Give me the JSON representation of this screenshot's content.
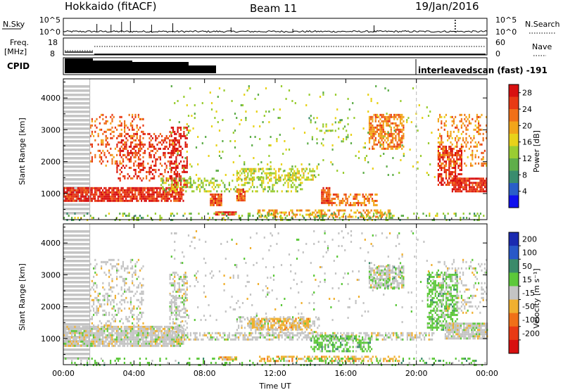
{
  "header": {
    "station": "Hokkaido (fitACF)",
    "beam": "Beam 11",
    "date": "19/Jan/2016"
  },
  "top_panels": {
    "nsky_label": "N.Sky",
    "nsky_ticks": [
      "10^5",
      "10^0"
    ],
    "nsearch_label": "N.Search",
    "nsearch_ticks": [
      "10^5",
      "10^0"
    ],
    "freq_label_1": "Freq.",
    "freq_label_2": "[MHz]",
    "freq_ticks": [
      "18",
      "8"
    ],
    "nave_label": "Nave",
    "nave_ticks": [
      "60",
      "0"
    ],
    "cpid_label": "CPID",
    "cpid_text": "interleavedscan (fast)  -191",
    "nsky_spikes": [
      {
        "t": 1.9,
        "v": 0.6
      },
      {
        "t": 2.7,
        "v": 0.55
      },
      {
        "t": 3.3,
        "v": 0.75
      },
      {
        "t": 3.8,
        "v": 0.8
      },
      {
        "t": 5.0,
        "v": 0.55
      },
      {
        "t": 6.2,
        "v": 0.65
      },
      {
        "t": 9.5,
        "v": 0.35
      },
      {
        "t": 13.0,
        "v": 0.25
      },
      {
        "t": 17.6,
        "v": 0.5
      },
      {
        "t": 22.2,
        "v": 1.0
      }
    ]
  },
  "chart_data": [
    {
      "type": "heatmap",
      "panel": "power",
      "xlabel": "",
      "ylabel": "Slant Range [km]",
      "x_ticks": [
        "00:00",
        "04:00",
        "08:00",
        "12:00",
        "16:00",
        "20:00",
        "00:00"
      ],
      "xlim_hours": [
        0,
        24
      ],
      "y_ticks": [
        1000,
        2000,
        3000,
        4000
      ],
      "ylim_km": [
        180,
        4600
      ],
      "colorbar_label": "Power [dB]",
      "colorbar_ticks": [
        28,
        24,
        20,
        16,
        12,
        8,
        4
      ],
      "colorbar_range": [
        0,
        30
      ],
      "colorbar_colors": [
        "#1010ee",
        "#2a5ec8",
        "#3a8c6e",
        "#5fae4a",
        "#9acd32",
        "#e8d21a",
        "#f2a51a",
        "#f07018",
        "#e83a14",
        "#d81010"
      ],
      "gate_lines_hours": [
        1.5,
        20.0
      ],
      "regions": [
        {
          "t0": 0.0,
          "t1": 1.5,
          "r0": 400,
          "r1": 4400,
          "pattern": "stripes",
          "color": "#c4c4c4"
        },
        {
          "t0": 0.0,
          "t1": 6.8,
          "r0": 780,
          "r1": 1200,
          "v": 27
        },
        {
          "t0": 1.5,
          "t1": 4.5,
          "r0": 1900,
          "r1": 3500,
          "v": 23,
          "density": 0.25
        },
        {
          "t0": 3.0,
          "t1": 6.5,
          "r0": 1400,
          "r1": 2900,
          "v": 26,
          "density": 0.3
        },
        {
          "t0": 6.0,
          "t1": 7.0,
          "r0": 1200,
          "r1": 3100,
          "v": 28,
          "density": 0.4
        },
        {
          "t0": 5.5,
          "t1": 13.5,
          "r0": 1100,
          "r1": 1500,
          "v": 14,
          "density": 0.35
        },
        {
          "t0": 9.8,
          "t1": 14.2,
          "r0": 1450,
          "r1": 1800,
          "v": 15,
          "density": 0.5
        },
        {
          "t0": 8.3,
          "t1": 9.0,
          "r0": 650,
          "r1": 1000,
          "v": 24
        },
        {
          "t0": 9.8,
          "t1": 10.3,
          "r0": 800,
          "r1": 1150,
          "v": 24
        },
        {
          "t0": 14.6,
          "t1": 15.1,
          "r0": 700,
          "r1": 1200,
          "v": 25
        },
        {
          "t0": 15.0,
          "t1": 17.8,
          "r0": 650,
          "r1": 1000,
          "v": 22,
          "density": 0.55
        },
        {
          "t0": 8.6,
          "t1": 9.8,
          "r0": 360,
          "r1": 440,
          "v": 26
        },
        {
          "t0": 11.0,
          "t1": 18.5,
          "r0": 300,
          "r1": 500,
          "v": 20,
          "density": 0.45
        },
        {
          "t0": 17.3,
          "t1": 19.3,
          "r0": 2400,
          "r1": 3500,
          "v": 22,
          "density": 0.6
        },
        {
          "t0": 13.8,
          "t1": 16.2,
          "r0": 2600,
          "r1": 3400,
          "v": 12,
          "density": 0.15
        },
        {
          "t0": 21.2,
          "t1": 22.6,
          "r0": 1300,
          "r1": 2500,
          "v": 27,
          "density": 0.6
        },
        {
          "t0": 22.0,
          "t1": 24.0,
          "r0": 1050,
          "r1": 1500,
          "v": 27
        },
        {
          "t0": 21.2,
          "t1": 24.0,
          "r0": 1900,
          "r1": 3500,
          "v": 21,
          "density": 0.25
        },
        {
          "t0": 0.0,
          "t1": 24.0,
          "r0": 180,
          "r1": 400,
          "v": 12,
          "density": 0.2
        },
        {
          "t0": 6.0,
          "t1": 21.0,
          "r0": 1500,
          "r1": 4400,
          "v": 14,
          "density": 0.03
        }
      ]
    },
    {
      "type": "heatmap",
      "panel": "velocity",
      "xlabel": "Time UT",
      "ylabel": "Slant Range [km]",
      "x_ticks": [
        "00:00",
        "04:00",
        "08:00",
        "12:00",
        "16:00",
        "20:00",
        "00:00"
      ],
      "xlim_hours": [
        0,
        24
      ],
      "y_ticks": [
        1000,
        2000,
        3000,
        4000
      ],
      "ylim_km": [
        180,
        4600
      ],
      "colorbar_label": "Velocity [m s⁻¹]",
      "colorbar_ticks": [
        200,
        100,
        50,
        15,
        -15,
        -50,
        -100,
        -200
      ],
      "colorbar_colors": [
        "#1a2ab0",
        "#2858c8",
        "#3a8a6a",
        "#5cc83a",
        "#c4c4c4",
        "#f0b030",
        "#f07018",
        "#e83a14",
        "#d81010"
      ],
      "gate_lines_hours": [
        1.5,
        20.0
      ],
      "regions": [
        {
          "t0": 0.0,
          "t1": 1.5,
          "r0": 400,
          "r1": 4400,
          "pattern": "stripes",
          "color": "#c4c4c4"
        },
        {
          "t0": 0.0,
          "t1": 6.8,
          "r0": 780,
          "r1": 1400,
          "cls": 4
        },
        {
          "t0": 1.5,
          "t1": 4.5,
          "r0": 1400,
          "r1": 3500,
          "cls": 4,
          "density": 0.25
        },
        {
          "t0": 6.0,
          "t1": 7.0,
          "r0": 1200,
          "r1": 3100,
          "cls": 4,
          "density": 0.45
        },
        {
          "t0": 5.5,
          "t1": 21.0,
          "r0": 1000,
          "r1": 1200,
          "cls": 4,
          "density": 0.55
        },
        {
          "t0": 10.5,
          "t1": 14.0,
          "r0": 1300,
          "r1": 1650,
          "cls": 5,
          "density": 0.7
        },
        {
          "t0": 9.8,
          "t1": 14.5,
          "r0": 1200,
          "r1": 1700,
          "cls": 4,
          "density": 0.3
        },
        {
          "t0": 14.0,
          "t1": 17.5,
          "r0": 600,
          "r1": 1100,
          "cls": 3,
          "density": 0.5
        },
        {
          "t0": 8.8,
          "t1": 9.8,
          "r0": 360,
          "r1": 440,
          "cls": 5
        },
        {
          "t0": 11.0,
          "t1": 19.0,
          "r0": 280,
          "r1": 460,
          "cls": 5,
          "density": 0.45
        },
        {
          "t0": 17.3,
          "t1": 19.3,
          "r0": 2600,
          "r1": 3300,
          "cls": 4,
          "density": 0.7
        },
        {
          "t0": 17.3,
          "t1": 19.3,
          "r0": 2600,
          "r1": 3400,
          "cls": 3,
          "density": 0.15
        },
        {
          "t0": 20.6,
          "t1": 22.3,
          "r0": 1300,
          "r1": 3100,
          "cls": 3,
          "density": 0.55
        },
        {
          "t0": 21.6,
          "t1": 24.0,
          "r0": 1000,
          "r1": 1500,
          "cls": 4
        },
        {
          "t0": 21.2,
          "t1": 24.0,
          "r0": 1800,
          "r1": 3500,
          "cls": 4,
          "density": 0.2
        },
        {
          "t0": 0.0,
          "t1": 24.0,
          "r0": 180,
          "r1": 400,
          "cls": 3,
          "density": 0.2
        },
        {
          "t0": 6.0,
          "t1": 21.0,
          "r0": 1500,
          "r1": 4400,
          "cls": 4,
          "density": 0.03
        }
      ]
    }
  ]
}
